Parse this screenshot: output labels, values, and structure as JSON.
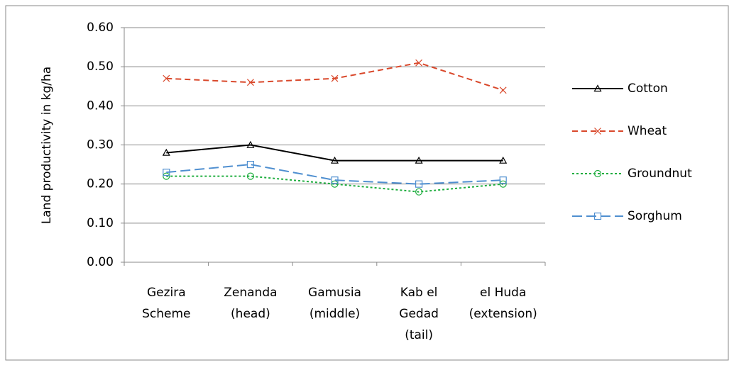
{
  "chart_data": {
    "type": "line",
    "y_label": "Land productivity in kg/ha",
    "categories": [
      [
        "Gezira",
        "Scheme"
      ],
      [
        "Zenanda",
        "(head)"
      ],
      [
        "Gamusia",
        "(middle)"
      ],
      [
        "Kab el",
        "Gedad",
        "(tail)"
      ],
      [
        "el Huda",
        "(extension)"
      ]
    ],
    "series": [
      {
        "name": "Cotton",
        "color": "#000000",
        "marker": "triangle",
        "dash": "solid",
        "values": [
          0.28,
          0.3,
          0.26,
          0.26,
          0.26
        ]
      },
      {
        "name": "Wheat",
        "color": "#d9482b",
        "marker": "x",
        "dash": "dash",
        "values": [
          0.47,
          0.46,
          0.47,
          0.51,
          0.44
        ]
      },
      {
        "name": "Groundnut",
        "color": "#1fae3f",
        "marker": "circle",
        "dash": "dot",
        "values": [
          0.22,
          0.22,
          0.2,
          0.18,
          0.2
        ]
      },
      {
        "name": "Sorghum",
        "color": "#4f8fd0",
        "marker": "square",
        "dash": "longdash",
        "values": [
          0.23,
          0.25,
          0.21,
          0.2,
          0.21
        ]
      }
    ],
    "ylim": [
      0,
      0.6
    ],
    "yticks": [
      {
        "value": 0,
        "label": "0.00"
      },
      {
        "value": 0.1,
        "label": "0.10"
      },
      {
        "value": 0.2,
        "label": "0.20"
      },
      {
        "value": 0.3,
        "label": "0.30"
      },
      {
        "value": 0.4,
        "label": "0.40"
      },
      {
        "value": 0.5,
        "label": "0.50"
      },
      {
        "value": 0.6,
        "label": "0.60"
      }
    ],
    "grid": true,
    "legend": "right"
  }
}
